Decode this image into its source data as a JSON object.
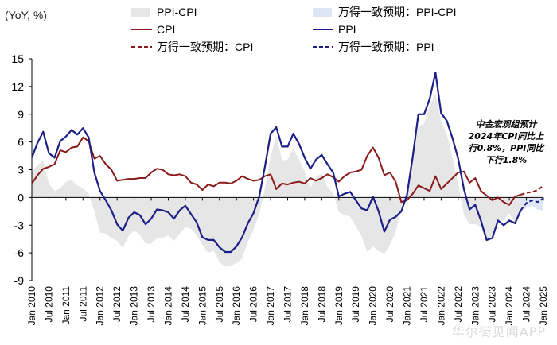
{
  "chart_data": {
    "type": "line",
    "ylabel": "(YoY, %)",
    "ylim": [
      -9,
      15
    ],
    "yticks": [
      15,
      12,
      9,
      6,
      3,
      0,
      -3,
      -6,
      -9
    ],
    "xlim": [
      "2010-01",
      "2025-01"
    ],
    "xticks": [
      "Jan 2010",
      "Jul 2010",
      "Jan 2011",
      "Jul 2011",
      "Jan 2012",
      "Jul 2012",
      "Jan 2013",
      "Jul 2013",
      "Jan 2014",
      "Jul 2014",
      "Jan 2015",
      "Jul 2015",
      "Jan 2016",
      "Jul 2016",
      "Jan 2017",
      "Jul 2017",
      "Jan 2018",
      "Jul 2018",
      "Jan 2019",
      "Jul 2019",
      "Jan 2020",
      "Jul 2020",
      "Jan 2021",
      "Jul 2021",
      "Jan 2022",
      "Jul 2022",
      "Jan 2023",
      "Jul 2023",
      "Jan 2024",
      "Jul 2024",
      "Jan 2025"
    ],
    "legend": [
      {
        "label": "PPI-CPI",
        "style": "area",
        "color": "#e6e6e6"
      },
      {
        "label": "万得一致预期：PPI-CPI",
        "style": "area",
        "color": "#dce6f4"
      },
      {
        "label": "CPI",
        "style": "line",
        "color": "#8b1a1a"
      },
      {
        "label": "PPI",
        "style": "line",
        "color": "#1c1f87"
      },
      {
        "label": "万得一致预期：CPI",
        "style": "dashed",
        "color": "#8b1a1a"
      },
      {
        "label": "万得一致预期：PPI",
        "style": "dashed",
        "color": "#1c1f87"
      }
    ],
    "colors": {
      "cpi": "#8b1a1a",
      "ppi": "#1c1f87",
      "spread": "#e6e6e6",
      "spread_forecast": "#dce6f4",
      "axis": "#000000"
    },
    "series": [
      {
        "name": "CPI",
        "points": [
          [
            "2010-01",
            1.5
          ],
          [
            "2010-03",
            2.4
          ],
          [
            "2010-05",
            3.1
          ],
          [
            "2010-07",
            3.3
          ],
          [
            "2010-09",
            3.6
          ],
          [
            "2010-11",
            5.1
          ],
          [
            "2011-01",
            4.9
          ],
          [
            "2011-03",
            5.4
          ],
          [
            "2011-05",
            5.5
          ],
          [
            "2011-07",
            6.5
          ],
          [
            "2011-09",
            6.1
          ],
          [
            "2011-11",
            4.2
          ],
          [
            "2012-01",
            4.5
          ],
          [
            "2012-03",
            3.6
          ],
          [
            "2012-05",
            3.0
          ],
          [
            "2012-07",
            1.8
          ],
          [
            "2012-09",
            1.9
          ],
          [
            "2012-11",
            2.0
          ],
          [
            "2013-01",
            2.0
          ],
          [
            "2013-03",
            2.1
          ],
          [
            "2013-05",
            2.1
          ],
          [
            "2013-07",
            2.7
          ],
          [
            "2013-09",
            3.1
          ],
          [
            "2013-11",
            3.0
          ],
          [
            "2014-01",
            2.5
          ],
          [
            "2014-03",
            2.4
          ],
          [
            "2014-05",
            2.5
          ],
          [
            "2014-07",
            2.3
          ],
          [
            "2014-09",
            1.6
          ],
          [
            "2014-11",
            1.4
          ],
          [
            "2015-01",
            0.8
          ],
          [
            "2015-03",
            1.4
          ],
          [
            "2015-05",
            1.2
          ],
          [
            "2015-07",
            1.6
          ],
          [
            "2015-09",
            1.6
          ],
          [
            "2015-11",
            1.5
          ],
          [
            "2016-01",
            1.8
          ],
          [
            "2016-03",
            2.3
          ],
          [
            "2016-05",
            2.0
          ],
          [
            "2016-07",
            1.8
          ],
          [
            "2016-09",
            1.9
          ],
          [
            "2016-11",
            2.3
          ],
          [
            "2017-01",
            2.5
          ],
          [
            "2017-03",
            0.9
          ],
          [
            "2017-05",
            1.5
          ],
          [
            "2017-07",
            1.4
          ],
          [
            "2017-09",
            1.6
          ],
          [
            "2017-11",
            1.7
          ],
          [
            "2018-01",
            1.5
          ],
          [
            "2018-03",
            2.1
          ],
          [
            "2018-05",
            1.8
          ],
          [
            "2018-07",
            2.1
          ],
          [
            "2018-09",
            2.5
          ],
          [
            "2018-11",
            2.2
          ],
          [
            "2019-01",
            1.7
          ],
          [
            "2019-03",
            2.3
          ],
          [
            "2019-05",
            2.7
          ],
          [
            "2019-07",
            2.8
          ],
          [
            "2019-09",
            3.0
          ],
          [
            "2019-11",
            4.5
          ],
          [
            "2020-01",
            5.4
          ],
          [
            "2020-03",
            4.3
          ],
          [
            "2020-05",
            2.4
          ],
          [
            "2020-07",
            2.7
          ],
          [
            "2020-09",
            1.7
          ],
          [
            "2020-11",
            -0.5
          ],
          [
            "2021-01",
            -0.3
          ],
          [
            "2021-03",
            0.4
          ],
          [
            "2021-05",
            1.3
          ],
          [
            "2021-07",
            1.0
          ],
          [
            "2021-09",
            0.7
          ],
          [
            "2021-11",
            2.3
          ],
          [
            "2022-01",
            0.9
          ],
          [
            "2022-03",
            1.5
          ],
          [
            "2022-05",
            2.1
          ],
          [
            "2022-07",
            2.7
          ],
          [
            "2022-09",
            2.8
          ],
          [
            "2022-11",
            1.6
          ],
          [
            "2023-01",
            2.1
          ],
          [
            "2023-03",
            0.7
          ],
          [
            "2023-05",
            0.2
          ],
          [
            "2023-07",
            -0.3
          ],
          [
            "2023-09",
            0.0
          ],
          [
            "2023-11",
            -0.5
          ],
          [
            "2024-01",
            -0.8
          ],
          [
            "2024-03",
            0.1
          ],
          [
            "2024-05",
            0.3
          ]
        ]
      },
      {
        "name": "PPI",
        "points": [
          [
            "2010-01",
            4.3
          ],
          [
            "2010-03",
            5.9
          ],
          [
            "2010-05",
            7.1
          ],
          [
            "2010-07",
            4.8
          ],
          [
            "2010-09",
            4.3
          ],
          [
            "2010-11",
            6.1
          ],
          [
            "2011-01",
            6.6
          ],
          [
            "2011-03",
            7.3
          ],
          [
            "2011-05",
            6.8
          ],
          [
            "2011-07",
            7.5
          ],
          [
            "2011-09",
            6.5
          ],
          [
            "2011-11",
            2.7
          ],
          [
            "2012-01",
            0.7
          ],
          [
            "2012-03",
            -0.3
          ],
          [
            "2012-05",
            -1.4
          ],
          [
            "2012-07",
            -2.9
          ],
          [
            "2012-09",
            -3.6
          ],
          [
            "2012-11",
            -2.2
          ],
          [
            "2013-01",
            -1.6
          ],
          [
            "2013-03",
            -1.9
          ],
          [
            "2013-05",
            -2.9
          ],
          [
            "2013-07",
            -2.3
          ],
          [
            "2013-09",
            -1.3
          ],
          [
            "2013-11",
            -1.4
          ],
          [
            "2014-01",
            -1.6
          ],
          [
            "2014-03",
            -2.3
          ],
          [
            "2014-05",
            -1.4
          ],
          [
            "2014-07",
            -0.9
          ],
          [
            "2014-09",
            -1.8
          ],
          [
            "2014-11",
            -2.7
          ],
          [
            "2015-01",
            -4.3
          ],
          [
            "2015-03",
            -4.6
          ],
          [
            "2015-05",
            -4.6
          ],
          [
            "2015-07",
            -5.4
          ],
          [
            "2015-09",
            -5.9
          ],
          [
            "2015-11",
            -5.9
          ],
          [
            "2016-01",
            -5.3
          ],
          [
            "2016-03",
            -4.3
          ],
          [
            "2016-05",
            -2.8
          ],
          [
            "2016-07",
            -1.7
          ],
          [
            "2016-09",
            0.1
          ],
          [
            "2016-11",
            3.3
          ],
          [
            "2017-01",
            6.9
          ],
          [
            "2017-03",
            7.6
          ],
          [
            "2017-05",
            5.5
          ],
          [
            "2017-07",
            5.5
          ],
          [
            "2017-09",
            6.9
          ],
          [
            "2017-11",
            5.8
          ],
          [
            "2018-01",
            4.3
          ],
          [
            "2018-03",
            3.1
          ],
          [
            "2018-05",
            4.1
          ],
          [
            "2018-07",
            4.6
          ],
          [
            "2018-09",
            3.6
          ],
          [
            "2018-11",
            2.7
          ],
          [
            "2019-01",
            0.1
          ],
          [
            "2019-03",
            0.4
          ],
          [
            "2019-05",
            0.6
          ],
          [
            "2019-07",
            -0.3
          ],
          [
            "2019-09",
            -1.2
          ],
          [
            "2019-11",
            -1.4
          ],
          [
            "2020-01",
            0.1
          ],
          [
            "2020-03",
            -1.5
          ],
          [
            "2020-05",
            -3.7
          ],
          [
            "2020-07",
            -2.4
          ],
          [
            "2020-09",
            -2.1
          ],
          [
            "2020-11",
            -1.5
          ],
          [
            "2021-01",
            0.3
          ],
          [
            "2021-03",
            4.4
          ],
          [
            "2021-05",
            9.0
          ],
          [
            "2021-07",
            9.0
          ],
          [
            "2021-09",
            10.7
          ],
          [
            "2021-11",
            13.5
          ],
          [
            "2022-01",
            9.1
          ],
          [
            "2022-03",
            8.3
          ],
          [
            "2022-05",
            6.4
          ],
          [
            "2022-07",
            4.2
          ],
          [
            "2022-09",
            0.9
          ],
          [
            "2022-11",
            -1.3
          ],
          [
            "2023-01",
            -0.8
          ],
          [
            "2023-03",
            -2.5
          ],
          [
            "2023-05",
            -4.6
          ],
          [
            "2023-07",
            -4.4
          ],
          [
            "2023-09",
            -2.5
          ],
          [
            "2023-11",
            -3.0
          ],
          [
            "2024-01",
            -2.5
          ],
          [
            "2024-03",
            -2.8
          ],
          [
            "2024-05",
            -1.4
          ]
        ]
      },
      {
        "name": "万得一致预期：CPI",
        "points": [
          [
            "2024-05",
            0.3
          ],
          [
            "2024-07",
            0.5
          ],
          [
            "2024-09",
            0.6
          ],
          [
            "2024-11",
            0.8
          ],
          [
            "2025-01",
            1.3
          ]
        ]
      },
      {
        "name": "万得一致预期：PPI",
        "points": [
          [
            "2024-05",
            -1.4
          ],
          [
            "2024-07",
            -0.6
          ],
          [
            "2024-09",
            -0.3
          ],
          [
            "2024-11",
            -0.5
          ],
          [
            "2025-01",
            -0.1
          ]
        ]
      }
    ],
    "annotation": [
      "中金宏观组预计",
      "2024年CPI同比上",
      "行0.8%，PPI同比",
      "下行1.8%"
    ]
  },
  "watermark": "华尔街见闻APP"
}
